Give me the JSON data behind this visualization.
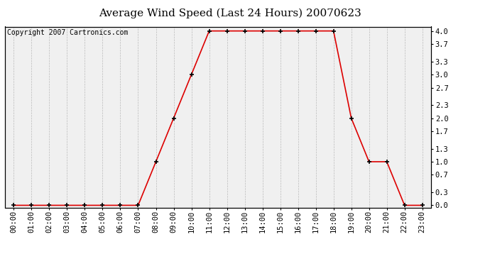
{
  "title": "Average Wind Speed (Last 24 Hours) 20070623",
  "copyright_text": "Copyright 2007 Cartronics.com",
  "x_labels": [
    "00:00",
    "01:00",
    "02:00",
    "03:00",
    "04:00",
    "05:00",
    "06:00",
    "07:00",
    "08:00",
    "09:00",
    "10:00",
    "11:00",
    "12:00",
    "13:00",
    "14:00",
    "15:00",
    "16:00",
    "17:00",
    "18:00",
    "19:00",
    "20:00",
    "21:00",
    "22:00",
    "23:00"
  ],
  "y_values": [
    0.0,
    0.0,
    0.0,
    0.0,
    0.0,
    0.0,
    0.0,
    0.0,
    1.0,
    2.0,
    3.0,
    4.0,
    4.0,
    4.0,
    4.0,
    4.0,
    4.0,
    4.0,
    4.0,
    2.0,
    1.0,
    1.0,
    0.0,
    0.0
  ],
  "y_ticks": [
    0.0,
    0.3,
    0.7,
    1.0,
    1.3,
    1.7,
    2.0,
    2.3,
    2.7,
    3.0,
    3.3,
    3.7,
    4.0
  ],
  "ylim": [
    0.0,
    4.0
  ],
  "line_color": "#dd0000",
  "marker_color": "#000000",
  "bg_color": "#ffffff",
  "plot_bg_color": "#f0f0f0",
  "grid_color": "#bbbbbb",
  "title_fontsize": 11,
  "tick_fontsize": 7.5,
  "copyright_fontsize": 7
}
